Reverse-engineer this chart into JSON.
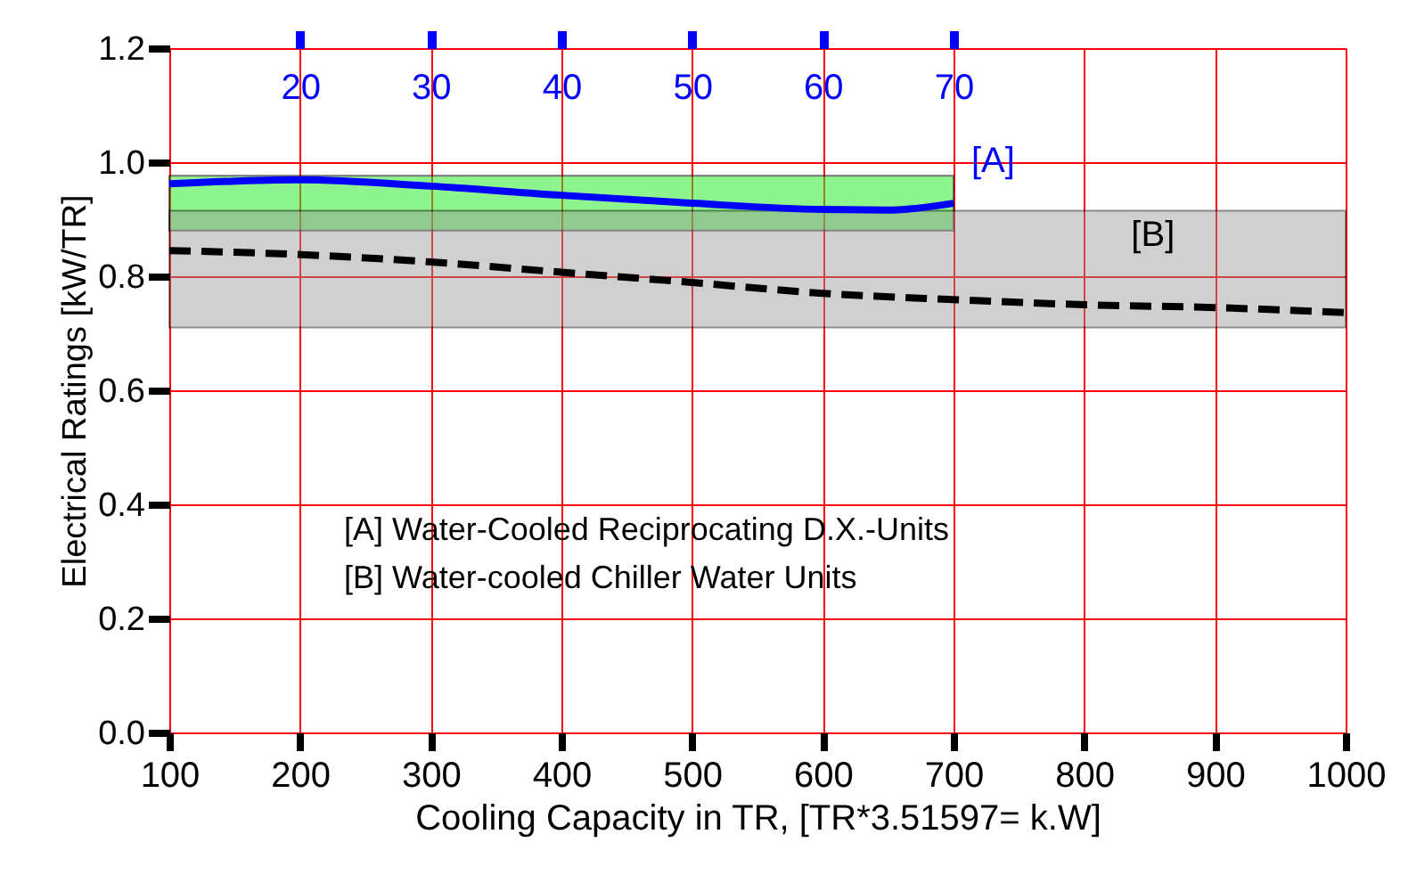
{
  "chart_data": {
    "type": "line",
    "xlabel": "Cooling Capacity in TR, [TR*3.51597= k.W]",
    "ylabel": "Electrical Ratings  [kW/TR]",
    "xlim": [
      100,
      1000
    ],
    "xticks": [
      100,
      200,
      300,
      400,
      500,
      600,
      700,
      800,
      900,
      {
        "value": 1000,
        "label": "1000"
      }
    ],
    "ylim": [
      0,
      1.2
    ],
    "yticks": [
      {
        "value": 0,
        "label": "0.0"
      },
      0.2,
      0.4,
      0.6,
      0.8,
      {
        "value": 1.0,
        "label": "1.0"
      },
      1.2
    ],
    "x2lim": [
      10,
      100
    ],
    "x2ticks": [
      20,
      30,
      40,
      50,
      60,
      70
    ],
    "grid": true,
    "marker": "none",
    "series": [
      {
        "name": "[A]",
        "color": "#0000ff",
        "line_style": "solid",
        "x": [
          100,
          200,
          300,
          400,
          500,
          600,
          650,
          700
        ],
        "values": [
          0.962,
          0.969,
          0.958,
          0.942,
          0.928,
          0.917,
          0.916,
          0.928
        ],
        "lower": [
          0.88,
          0.88,
          0.88,
          0.88,
          0.88,
          0.88,
          0.88,
          0.88
        ],
        "upper": [
          0.976,
          0.976,
          0.976,
          0.976,
          0.976,
          0.976,
          0.976,
          0.976
        ]
      },
      {
        "name": "[B]",
        "color": "#000000",
        "line_style": "dashed",
        "x": [
          100,
          200,
          300,
          400,
          500,
          600,
          700,
          800,
          900,
          1000
        ],
        "values": [
          0.845,
          0.838,
          0.825,
          0.807,
          0.789,
          0.77,
          0.759,
          0.75,
          0.745,
          0.736
        ],
        "lower": [
          0.71,
          0.71,
          0.71,
          0.71,
          0.71,
          0.71,
          0.71,
          0.71,
          0.71,
          0.71
        ],
        "upper": [
          0.915,
          0.915,
          0.915,
          0.915,
          0.915,
          0.915,
          0.915,
          0.915,
          0.915,
          0.915
        ]
      }
    ],
    "annotations": [
      "[A]  Water-Cooled Reciprocating D.X.-Units",
      "[B]  Water-cooled Chiller Water Units"
    ]
  }
}
